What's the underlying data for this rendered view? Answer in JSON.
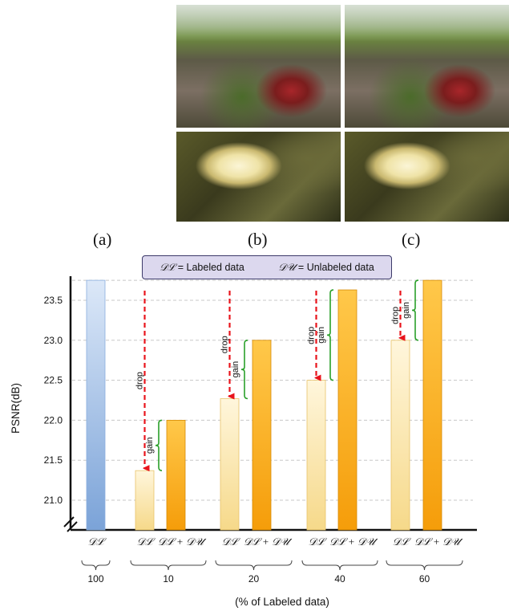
{
  "panels": {
    "labels": [
      "(a)",
      "(b)",
      "(c)"
    ]
  },
  "legend": {
    "labeled_symbol": "𝒟ℒ",
    "labeled_text": "= Labeled data",
    "unlabeled_symbol": "𝒟𝒰",
    "unlabeled_text": "= Unlabeled data"
  },
  "annotations": {
    "drop": "drop",
    "gain": "gain"
  },
  "chart_data": {
    "type": "bar",
    "ylabel": "PSNR(dB)",
    "xlabel": "(% of Labeled data)",
    "ylim": [
      20.6,
      23.75
    ],
    "yticks": [
      21.0,
      21.5,
      22.0,
      22.5,
      23.0,
      23.5
    ],
    "grid": true,
    "groups": [
      {
        "percent": "100",
        "bars": [
          {
            "label": "𝒟ℒ",
            "value": 23.75,
            "kind": "full"
          }
        ]
      },
      {
        "percent": "10",
        "bars": [
          {
            "label": "𝒟ℒ",
            "value": 21.37,
            "kind": "labeled"
          },
          {
            "label": "𝒟ℒ + 𝒟𝒰",
            "value": 22.0,
            "kind": "semi"
          }
        ]
      },
      {
        "percent": "20",
        "bars": [
          {
            "label": "𝒟ℒ",
            "value": 22.27,
            "kind": "labeled"
          },
          {
            "label": "𝒟ℒ + 𝒟𝒰",
            "value": 23.0,
            "kind": "semi"
          }
        ]
      },
      {
        "percent": "40",
        "bars": [
          {
            "label": "𝒟ℒ",
            "value": 22.5,
            "kind": "labeled"
          },
          {
            "label": "𝒟ℒ + 𝒟𝒰",
            "value": 23.63,
            "kind": "semi"
          }
        ]
      },
      {
        "percent": "60",
        "bars": [
          {
            "label": "𝒟ℒ",
            "value": 23.0,
            "kind": "labeled"
          },
          {
            "label": "𝒟ℒ + 𝒟𝒰",
            "value": 23.75,
            "kind": "semi"
          }
        ]
      }
    ]
  }
}
